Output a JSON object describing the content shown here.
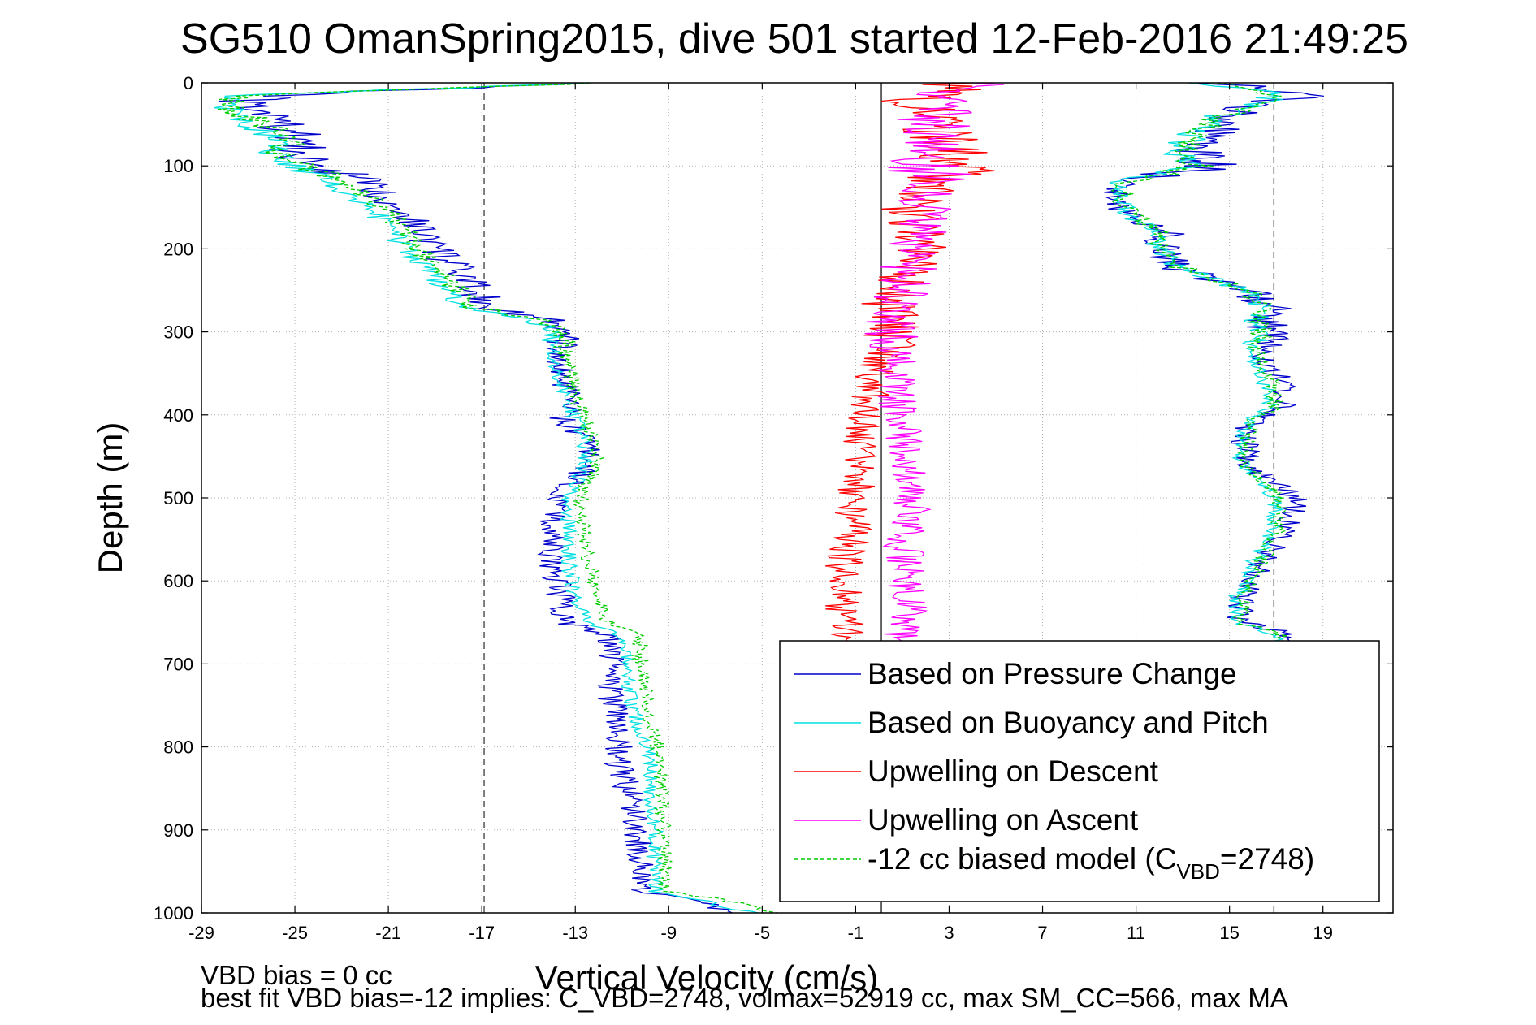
{
  "chart_data": {
    "type": "line",
    "title": "SG510 OmanSpring2015, dive 501 started 12-Feb-2016 21:49:25",
    "xlabel": "Vertical Velocity (cm/s)",
    "ylabel": "Depth (m)",
    "xlim": [
      -29,
      22
    ],
    "ylim": [
      0,
      1000
    ],
    "y_reversed": true,
    "x_ticks": [
      -29,
      -25,
      -21,
      -17,
      -13,
      -9,
      -5,
      -1,
      3,
      7,
      11,
      15,
      19
    ],
    "y_ticks": [
      0,
      100,
      200,
      300,
      400,
      500,
      600,
      700,
      800,
      900,
      1000
    ],
    "grid": true,
    "legend_position": "bottom-right",
    "reference_lines": [
      {
        "x": -16.9,
        "style": "dashed",
        "color": "#555555"
      },
      {
        "x": 0.1,
        "style": "solid",
        "color": "#333333"
      },
      {
        "x": 16.9,
        "style": "dashed",
        "color": "#555555"
      }
    ],
    "series": [
      {
        "name": "Based on Pressure Change",
        "color": "#0000cc",
        "depth": [
          0,
          15,
          25,
          40,
          55,
          70,
          85,
          100,
          120,
          150,
          180,
          200,
          220,
          250,
          270,
          285,
          300,
          330,
          360,
          390,
          405,
          430,
          460,
          500,
          540,
          580,
          620,
          650,
          665,
          700,
          740,
          780,
          820,
          860,
          900,
          940,
          975,
          985,
          1000
        ],
        "descent": [
          -12,
          -26,
          -27.5,
          -26,
          -25.5,
          -24.5,
          -25.3,
          -24,
          -22,
          -20.5,
          -19.5,
          -19,
          -18.3,
          -17.3,
          -16.7,
          -14.2,
          -13.6,
          -13.8,
          -13.5,
          -13.2,
          -13.6,
          -12.5,
          -12.4,
          -13.8,
          -14,
          -14,
          -13.6,
          -13.4,
          -11.6,
          -11.4,
          -11.5,
          -11,
          -11.2,
          -10.6,
          -10.4,
          -10.1,
          -10.2,
          -8,
          -6
        ],
        "ascent": [
          14.5,
          18,
          16.5,
          15.3,
          14.4,
          13.8,
          13.4,
          14.3,
          10.5,
          10.2,
          12.2,
          12.3,
          12.4,
          15.8,
          16.8,
          16.5,
          16.7,
          16.5,
          17.2,
          17.5,
          16,
          15.6,
          15.8,
          17.8,
          17.5,
          16.3,
          15.5,
          15.5,
          17.5,
          17.6
        ]
      },
      {
        "name": "Based on Buoyancy and Pitch",
        "color": "#00e0e0",
        "depth": [
          0,
          15,
          25,
          40,
          55,
          70,
          85,
          100,
          120,
          150,
          180,
          200,
          220,
          250,
          270,
          285,
          300,
          330,
          360,
          390,
          405,
          430,
          460,
          500,
          540,
          580,
          620,
          650,
          665,
          700,
          740,
          780,
          820,
          860,
          900,
          940,
          975,
          985,
          1000
        ],
        "descent": [
          -12,
          -27.5,
          -28.3,
          -27.5,
          -26.5,
          -25.5,
          -26,
          -25,
          -23.5,
          -21.8,
          -20.8,
          -20.3,
          -19.5,
          -18.5,
          -17.8,
          -14.8,
          -14,
          -14,
          -13.6,
          -13.2,
          -13,
          -12.6,
          -12.6,
          -13.3,
          -13.3,
          -13.3,
          -13,
          -12.5,
          -11,
          -10.8,
          -10.6,
          -10.2,
          -9.8,
          -9.8,
          -9.6,
          -9.6,
          -9.5,
          -7.5,
          -5.5
        ],
        "ascent": [
          14,
          17.2,
          16,
          14.6,
          13.8,
          13.2,
          12.8,
          13.6,
          10.3,
          10.4,
          11.8,
          12,
          12.6,
          15.6,
          16.4,
          16.1,
          16.2,
          16,
          16.5,
          16.7,
          15.8,
          15.5,
          15.5,
          17,
          16.8,
          16,
          15.3,
          15.2,
          17,
          17
        ]
      },
      {
        "name": "Upwelling on Descent",
        "color": "#ff0000",
        "depth": [
          0,
          30,
          60,
          100,
          150,
          200,
          250,
          300,
          350,
          400,
          450,
          500,
          550,
          600,
          650,
          680
        ],
        "values": [
          3,
          1.5,
          2.5,
          3.5,
          1.2,
          1.8,
          0.5,
          0.5,
          -0.2,
          -0.5,
          -0.8,
          -1,
          -1.2,
          -1.6,
          -1.5,
          -1
        ]
      },
      {
        "name": "Upwelling on Ascent",
        "color": "#ff00ff",
        "depth": [
          0,
          30,
          60,
          100,
          150,
          200,
          250,
          300,
          350,
          400,
          450,
          500,
          550,
          600,
          650,
          680
        ],
        "values": [
          4,
          2.5,
          2.5,
          2.2,
          2,
          1.5,
          1,
          0.6,
          0.8,
          0.8,
          1.2,
          1.5,
          1,
          1.2,
          1.3,
          0.7
        ]
      },
      {
        "name": "-12 cc biased model (C_VBD=2748)",
        "legend_prefix": "-12 cc biased model (C",
        "legend_sub": "VBD",
        "legend_suffix": "=2748)",
        "color": "#00cc00",
        "dashed": true,
        "depth": [
          0,
          15,
          25,
          40,
          55,
          70,
          85,
          100,
          120,
          150,
          180,
          200,
          220,
          250,
          270,
          285,
          300,
          330,
          360,
          390,
          405,
          430,
          460,
          500,
          540,
          580,
          620,
          650,
          665,
          700,
          740,
          780,
          820,
          860,
          900,
          940,
          975,
          985,
          1000
        ],
        "descent": [
          -12,
          -27,
          -28,
          -27,
          -26,
          -25.2,
          -25.6,
          -24.6,
          -23,
          -21.2,
          -20.2,
          -19.8,
          -19,
          -18,
          -17.4,
          -14.5,
          -13.6,
          -13.4,
          -13.1,
          -12.8,
          -12.6,
          -12.2,
          -12.1,
          -12.8,
          -12.6,
          -12.4,
          -12.1,
          -11.6,
          -10.3,
          -10.2,
          -10,
          -9.7,
          -9.3,
          -9.3,
          -9.2,
          -9.2,
          -9,
          -6.5,
          -4.5
        ],
        "ascent": [
          14.2,
          17.5,
          16.2,
          14.7,
          13.9,
          13.4,
          13,
          13.8,
          10.4,
          10.5,
          11.9,
          12.1,
          12.7,
          15.7,
          16.6,
          16.3,
          16.4,
          16.2,
          16.8,
          17,
          16,
          15.7,
          15.7,
          17.2,
          17,
          16.3,
          15.6,
          15.5,
          17.2,
          17.2
        ]
      }
    ],
    "footer": {
      "line1": "VBD bias = 0 cc",
      "line2": "best fit VBD bias=-12 implies: C_VBD=2748, volmax=52919 cc, max SM_CC=566, max MA"
    }
  }
}
